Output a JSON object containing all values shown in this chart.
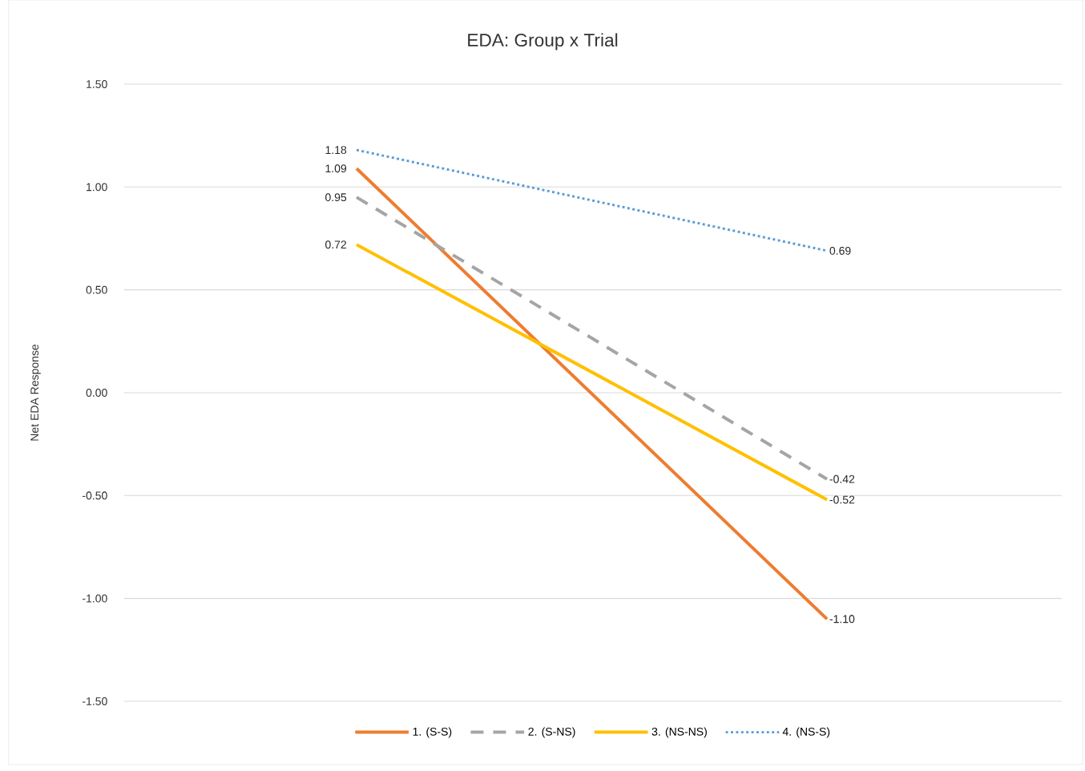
{
  "chart_data": {
    "type": "line",
    "title": "EDA: Group x Trial",
    "ylabel": "Net  EDA Response",
    "categories": [
      null,
      null
    ],
    "series": [
      {
        "name": "1. (S-S)",
        "color": "#ed7d31",
        "values": [
          1.09,
          -1.1
        ],
        "value_labels": [
          "1.09",
          "-1.10"
        ],
        "line_style": "solid"
      },
      {
        "name": "2. (S-NS)",
        "color": "#a5a5a5",
        "values": [
          0.95,
          -0.42
        ],
        "value_labels": [
          "0.95",
          "-0.42"
        ],
        "line_style": "dashed"
      },
      {
        "name": "3. (NS-NS)",
        "color": "#ffc000",
        "values": [
          0.72,
          -0.52
        ],
        "value_labels": [
          "0.72",
          "-0.52"
        ],
        "line_style": "solid"
      },
      {
        "name": "4. (NS-S)",
        "color": "#5b9bd5",
        "values": [
          1.18,
          0.69
        ],
        "value_labels": [
          "1.18",
          "0.69"
        ],
        "line_style": "dotted"
      }
    ],
    "ylim": [
      -1.5,
      1.5
    ],
    "yticks": [
      {
        "value": -1.5,
        "label": "-1.50"
      },
      {
        "value": -1.0,
        "label": "-1.00"
      },
      {
        "value": -0.5,
        "label": "-0.50"
      },
      {
        "value": 0.0,
        "label": "0.00"
      },
      {
        "value": 0.5,
        "label": "0.50"
      },
      {
        "value": 1.0,
        "label": "1.00"
      },
      {
        "value": 1.5,
        "label": "1.50"
      }
    ],
    "grid": "y",
    "legend": "bottom",
    "marker": "none"
  }
}
